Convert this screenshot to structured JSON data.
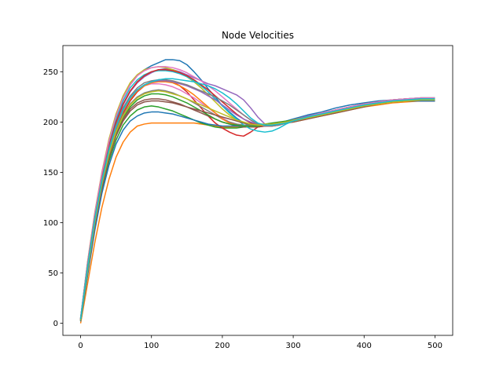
{
  "chart_data": {
    "type": "line",
    "title": "Node Velocities",
    "xlabel": "",
    "ylabel": "",
    "xlim": [
      -25,
      525
    ],
    "ylim": [
      -12,
      276
    ],
    "x_ticks": [
      0,
      100,
      200,
      300,
      400,
      500
    ],
    "y_ticks": [
      0,
      50,
      100,
      150,
      200,
      250
    ],
    "grid": false,
    "legend": "none",
    "colors": [
      "#1f77b4",
      "#ff7f0e",
      "#2ca02c",
      "#d62728",
      "#9467bd",
      "#8c564b",
      "#e377c2",
      "#7f7f7f",
      "#bcbd22",
      "#17becf"
    ],
    "x": [
      0,
      10,
      20,
      30,
      40,
      50,
      60,
      70,
      80,
      90,
      100,
      110,
      120,
      130,
      140,
      150,
      160,
      170,
      180,
      190,
      200,
      210,
      220,
      230,
      240,
      250,
      260,
      270,
      280,
      290,
      300,
      320,
      340,
      360,
      380,
      400,
      420,
      440,
      460,
      480,
      500
    ],
    "series": [
      {
        "values": [
          5,
          61,
          108,
          148,
          181,
          206,
          224,
          237,
          246,
          252,
          256,
          259,
          262,
          262,
          261,
          257,
          250,
          242,
          233,
          225,
          216,
          210,
          204,
          199,
          197,
          196,
          196,
          197,
          199,
          201,
          203,
          207,
          210,
          214,
          217,
          219,
          221,
          222,
          223,
          223,
          223
        ]
      },
      {
        "values": [
          0,
          40,
          80,
          115,
          143,
          165,
          180,
          190,
          196,
          198,
          199,
          199,
          199,
          199,
          199,
          199,
          199,
          198,
          197,
          196,
          195,
          195,
          195,
          195,
          195,
          195,
          196,
          197,
          198,
          199,
          200,
          203,
          206,
          209,
          212,
          215,
          217,
          219,
          220,
          221,
          221
        ]
      },
      {
        "values": [
          2,
          50,
          96,
          133,
          161,
          182,
          197,
          206,
          212,
          215,
          216,
          215,
          213,
          211,
          208,
          205,
          202,
          199,
          197,
          195,
          194,
          194,
          194,
          195,
          196,
          197,
          198,
          199,
          200,
          201,
          202,
          205,
          208,
          211,
          214,
          217,
          219,
          220,
          221,
          221,
          221
        ]
      },
      {
        "values": [
          3,
          55,
          102,
          140,
          170,
          192,
          209,
          221,
          230,
          236,
          240,
          242,
          242,
          240,
          236,
          230,
          222,
          214,
          206,
          199,
          194,
          190,
          187,
          186,
          190,
          195,
          197,
          198,
          199,
          200,
          201,
          204,
          207,
          210,
          213,
          216,
          218,
          220,
          221,
          221,
          221
        ]
      },
      {
        "values": [
          4,
          58,
          105,
          144,
          175,
          199,
          217,
          230,
          239,
          245,
          249,
          252,
          253,
          252,
          250,
          247,
          244,
          241,
          238,
          236,
          233,
          230,
          227,
          222,
          214,
          205,
          198,
          196,
          197,
          199,
          202,
          206,
          209,
          212,
          215,
          218,
          220,
          222,
          223,
          224,
          224
        ]
      },
      {
        "values": [
          3,
          52,
          98,
          136,
          166,
          188,
          203,
          213,
          219,
          222,
          223,
          223,
          222,
          220,
          218,
          215,
          212,
          209,
          206,
          203,
          200,
          198,
          196,
          195,
          195,
          195,
          196,
          197,
          198,
          199,
          200,
          203,
          206,
          209,
          212,
          215,
          218,
          220,
          221,
          222,
          222
        ]
      },
      {
        "values": [
          4,
          57,
          104,
          143,
          173,
          196,
          213,
          225,
          232,
          236,
          238,
          238,
          237,
          235,
          232,
          228,
          224,
          219,
          214,
          209,
          204,
          200,
          198,
          197,
          197,
          197,
          197,
          198,
          199,
          200,
          201,
          204,
          208,
          211,
          214,
          217,
          219,
          221,
          222,
          222,
          222
        ]
      },
      {
        "values": [
          3,
          54,
          101,
          139,
          169,
          191,
          207,
          218,
          225,
          229,
          231,
          232,
          231,
          229,
          226,
          223,
          219,
          215,
          211,
          207,
          203,
          200,
          198,
          197,
          197,
          197,
          197,
          198,
          199,
          200,
          201,
          204,
          207,
          210,
          213,
          216,
          218,
          220,
          221,
          222,
          222
        ]
      },
      {
        "values": [
          5,
          62,
          110,
          150,
          183,
          208,
          226,
          239,
          247,
          252,
          254,
          255,
          254,
          252,
          249,
          245,
          240,
          234,
          227,
          220,
          213,
          207,
          202,
          199,
          198,
          198,
          198,
          198,
          199,
          200,
          202,
          205,
          209,
          212,
          215,
          218,
          220,
          222,
          223,
          224,
          224
        ]
      },
      {
        "values": [
          5,
          60,
          107,
          146,
          178,
          203,
          221,
          234,
          242,
          247,
          250,
          251,
          251,
          250,
          248,
          245,
          241,
          236,
          230,
          223,
          216,
          209,
          203,
          197,
          193,
          191,
          190,
          191,
          194,
          198,
          201,
          205,
          209,
          212,
          215,
          218,
          220,
          222,
          223,
          224,
          224
        ]
      },
      {
        "values": [
          2,
          48,
          92,
          129,
          157,
          178,
          192,
          201,
          206,
          209,
          210,
          210,
          209,
          208,
          206,
          204,
          202,
          200,
          198,
          197,
          196,
          196,
          196,
          196,
          196,
          196,
          197,
          198,
          199,
          200,
          201,
          204,
          207,
          210,
          213,
          216,
          218,
          220,
          221,
          221,
          221
        ]
      },
      {
        "values": [
          4,
          56,
          103,
          141,
          171,
          194,
          211,
          223,
          231,
          236,
          239,
          240,
          240,
          239,
          236,
          232,
          227,
          221,
          215,
          209,
          203,
          199,
          197,
          196,
          196,
          196,
          197,
          198,
          199,
          200,
          201,
          204,
          207,
          210,
          213,
          216,
          218,
          220,
          221,
          222,
          222
        ]
      },
      {
        "values": [
          3,
          53,
          99,
          137,
          167,
          189,
          205,
          215,
          222,
          226,
          228,
          228,
          227,
          225,
          222,
          219,
          215,
          211,
          207,
          203,
          200,
          198,
          197,
          196,
          196,
          196,
          197,
          198,
          199,
          200,
          201,
          204,
          207,
          210,
          213,
          216,
          218,
          220,
          221,
          222,
          222
        ]
      },
      {
        "values": [
          4,
          59,
          106,
          145,
          176,
          200,
          218,
          231,
          240,
          246,
          250,
          252,
          252,
          251,
          249,
          246,
          242,
          237,
          232,
          226,
          220,
          214,
          208,
          203,
          199,
          197,
          196,
          196,
          197,
          199,
          201,
          205,
          208,
          212,
          215,
          218,
          220,
          222,
          223,
          223,
          223
        ]
      },
      {
        "values": [
          4,
          57,
          104,
          142,
          172,
          195,
          212,
          224,
          232,
          237,
          240,
          241,
          241,
          240,
          238,
          236,
          233,
          230,
          226,
          222,
          217,
          212,
          207,
          203,
          200,
          198,
          197,
          197,
          198,
          199,
          201,
          204,
          208,
          211,
          214,
          217,
          219,
          221,
          222,
          223,
          223
        ]
      },
      {
        "values": [
          3,
          51,
          97,
          134,
          164,
          186,
          201,
          211,
          217,
          220,
          221,
          221,
          220,
          219,
          217,
          215,
          213,
          211,
          209,
          207,
          205,
          203,
          201,
          199,
          198,
          197,
          197,
          198,
          199,
          200,
          201,
          204,
          207,
          210,
          213,
          216,
          218,
          220,
          221,
          222,
          222
        ]
      },
      {
        "values": [
          5,
          61,
          109,
          149,
          181,
          206,
          224,
          237,
          246,
          251,
          254,
          255,
          255,
          254,
          252,
          249,
          245,
          241,
          236,
          231,
          225,
          219,
          213,
          207,
          202,
          198,
          196,
          196,
          197,
          199,
          201,
          205,
          209,
          212,
          215,
          218,
          220,
          222,
          223,
          224,
          224
        ]
      },
      {
        "values": [
          4,
          58,
          105,
          143,
          174,
          197,
          214,
          226,
          234,
          239,
          241,
          242,
          242,
          241,
          239,
          237,
          234,
          231,
          228,
          225,
          221,
          217,
          212,
          207,
          202,
          198,
          196,
          196,
          197,
          199,
          201,
          205,
          208,
          211,
          214,
          217,
          219,
          221,
          222,
          223,
          223
        ]
      },
      {
        "values": [
          3,
          53,
          100,
          138,
          168,
          190,
          206,
          217,
          224,
          228,
          230,
          231,
          230,
          228,
          226,
          223,
          220,
          217,
          214,
          211,
          208,
          205,
          202,
          200,
          198,
          197,
          197,
          198,
          199,
          200,
          201,
          204,
          207,
          210,
          213,
          216,
          218,
          220,
          221,
          222,
          222
        ]
      },
      {
        "values": [
          4,
          56,
          103,
          141,
          172,
          195,
          212,
          224,
          232,
          237,
          240,
          242,
          243,
          243,
          242,
          241,
          240,
          238,
          236,
          233,
          229,
          224,
          218,
          211,
          204,
          199,
          197,
          197,
          198,
          199,
          201,
          205,
          208,
          211,
          214,
          217,
          219,
          221,
          222,
          223,
          223
        ]
      }
    ]
  }
}
